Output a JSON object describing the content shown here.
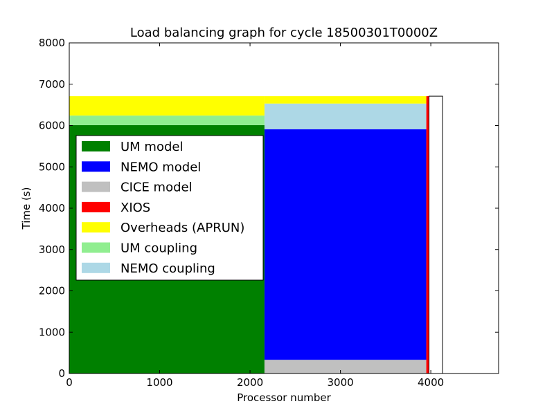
{
  "chart_data": {
    "type": "bar",
    "title": "Load balancing graph for cycle 18500301T0000Z",
    "xlabel": "Processor number",
    "ylabel": "Time (s)",
    "xlim": [
      0,
      4750
    ],
    "ylim": [
      0,
      8000
    ],
    "x_ticks": [
      0,
      1000,
      2000,
      3000,
      4000
    ],
    "y_ticks": [
      0,
      1000,
      2000,
      3000,
      4000,
      5000,
      6000,
      7000,
      8000
    ],
    "grid": false,
    "legend_placement": "center-left",
    "series": [
      {
        "name": "UM model",
        "color": "#008000",
        "segments": [
          {
            "x0": 0,
            "x1": 2160,
            "y0": 0,
            "y1": 6010
          }
        ]
      },
      {
        "name": "NEMO model",
        "color": "#0000ff",
        "segments": [
          {
            "x0": 2160,
            "x1": 3950,
            "y0": 330,
            "y1": 5910
          }
        ]
      },
      {
        "name": "CICE model",
        "color": "#c0c0c0",
        "segments": [
          {
            "x0": 2160,
            "x1": 3950,
            "y0": 0,
            "y1": 330
          }
        ]
      },
      {
        "name": "XIOS",
        "color": "#ff0000",
        "segments": [
          {
            "x0": 3950,
            "x1": 3980,
            "y0": 0,
            "y1": 6710
          }
        ]
      },
      {
        "name": "Overheads (APRUN)",
        "color": "#ffff00",
        "segments": [
          {
            "x0": 0,
            "x1": 2160,
            "y0": 6240,
            "y1": 6710
          },
          {
            "x0": 2160,
            "x1": 3950,
            "y0": 6530,
            "y1": 6710
          }
        ]
      },
      {
        "name": "UM coupling",
        "color": "#90ee90",
        "segments": [
          {
            "x0": 0,
            "x1": 2160,
            "y0": 6010,
            "y1": 6240
          }
        ]
      },
      {
        "name": "NEMO coupling",
        "color": "#add8e6",
        "segments": [
          {
            "x0": 2160,
            "x1": 3950,
            "y0": 5910,
            "y1": 6530
          }
        ]
      }
    ],
    "outline_boxes": [
      {
        "x0": 3980,
        "x1": 4130,
        "y0": 0,
        "y1": 6710
      }
    ]
  }
}
